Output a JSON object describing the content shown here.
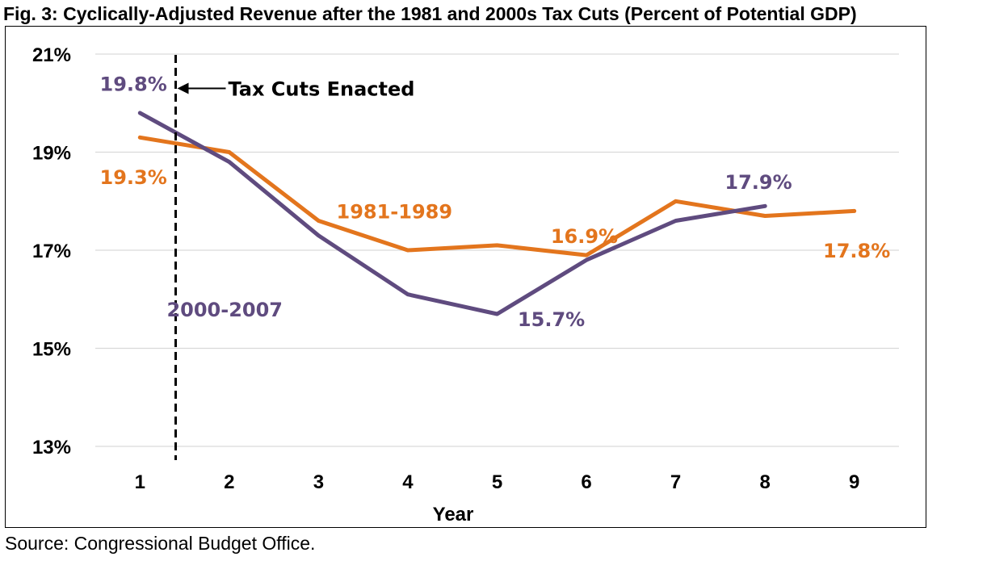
{
  "figure": {
    "title": "Fig. 3: Cyclically-Adjusted Revenue after the 1981 and 2000s Tax Cuts (Percent of Potential GDP)",
    "source": "Source: Congressional Budget Office."
  },
  "colors": {
    "orange": "#E3751D",
    "purple": "#5F4B7F",
    "grid": "#d9d9d9"
  },
  "chart_data": {
    "type": "line",
    "title": "Fig. 3: Cyclically-Adjusted Revenue after the 1981 and 2000s Tax Cuts (Percent of Potential GDP)",
    "xlabel": "Year",
    "ylabel": "",
    "x": [
      1,
      2,
      3,
      4,
      5,
      6,
      7,
      8,
      9
    ],
    "xlim": [
      0.5,
      9.5
    ],
    "ylim": [
      13,
      21
    ],
    "yticks": [
      13,
      15,
      17,
      19,
      21
    ],
    "ytick_labels": [
      "13%",
      "15%",
      "17%",
      "19%",
      "21%"
    ],
    "xtick_labels": [
      "1",
      "2",
      "3",
      "4",
      "5",
      "6",
      "7",
      "8",
      "9"
    ],
    "grid": true,
    "series": [
      {
        "name": "1981-1989",
        "color": "#E3751D",
        "x": [
          1,
          2,
          3,
          4,
          5,
          6,
          7,
          8,
          9
        ],
        "values": [
          19.3,
          19.0,
          17.6,
          17.0,
          17.1,
          16.9,
          18.0,
          17.7,
          17.8
        ]
      },
      {
        "name": "2000-2007",
        "color": "#5F4B7F",
        "x": [
          1,
          2,
          3,
          4,
          5,
          6,
          7,
          8
        ],
        "values": [
          19.8,
          18.8,
          17.3,
          16.1,
          15.7,
          16.8,
          17.6,
          17.9
        ]
      }
    ],
    "annotations": [
      {
        "id": "marker",
        "text": "Tax Cuts Enacted",
        "x": 1.4,
        "y": 20.3
      },
      {
        "id": "series-1981",
        "text": "1981-1989",
        "color": "#E3751D",
        "x": 3.2,
        "y": 17.8
      },
      {
        "id": "series-2000",
        "text": "2000-2007",
        "color": "#5F4B7F",
        "x": 1.3,
        "y": 15.8
      },
      {
        "id": "p198",
        "text": "19.8%",
        "color": "#5F4B7F",
        "x": 0.55,
        "y": 20.4
      },
      {
        "id": "p193",
        "text": "19.3%",
        "color": "#E3751D",
        "x": 0.55,
        "y": 18.5
      },
      {
        "id": "p169",
        "text": "16.9%",
        "color": "#E3751D",
        "x": 5.6,
        "y": 17.3
      },
      {
        "id": "p157",
        "text": "15.7%",
        "color": "#5F4B7F",
        "x": 5.23,
        "y": 15.6
      },
      {
        "id": "p179",
        "text": "17.9%",
        "color": "#5F4B7F",
        "x": 7.55,
        "y": 18.4
      },
      {
        "id": "p178",
        "text": "17.8%",
        "color": "#E3751D",
        "x": 8.65,
        "y": 17.0
      }
    ],
    "marker_x": 1.4
  }
}
